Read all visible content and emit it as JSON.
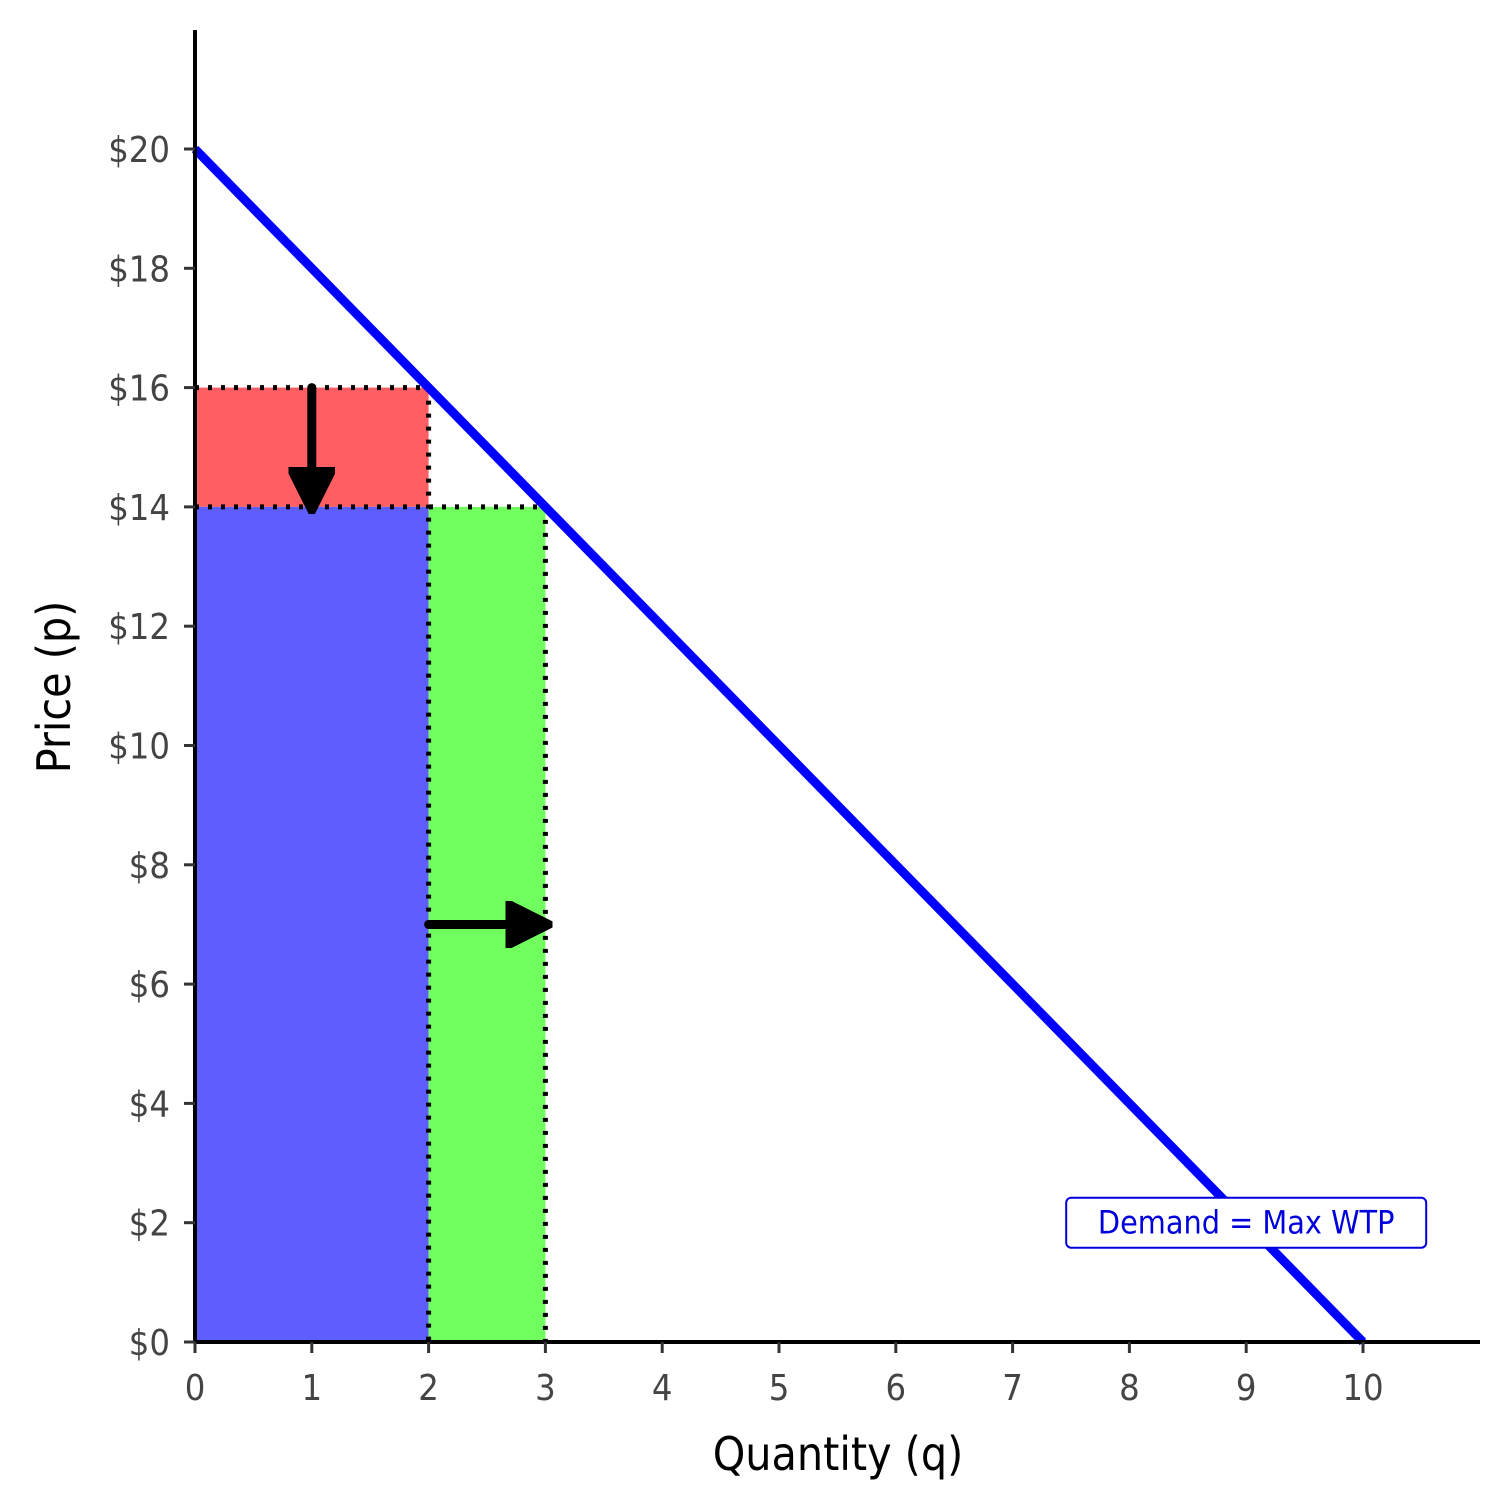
{
  "chart_data": {
    "type": "area",
    "title": "",
    "xlabel": "Quantity (q)",
    "ylabel": "Price (p)",
    "xlim": [
      0,
      11
    ],
    "ylim": [
      0,
      22
    ],
    "x_ticks": [
      "0",
      "1",
      "2",
      "3",
      "4",
      "5",
      "6",
      "7",
      "8",
      "9",
      "10"
    ],
    "y_ticks": [
      "$0",
      "$2",
      "$4",
      "$6",
      "$8",
      "$10",
      "$12",
      "$14",
      "$16",
      "$18",
      "$20"
    ],
    "grid": false,
    "legend": "none",
    "series": [
      {
        "name": "Demand = Max WTP",
        "type": "line",
        "color": "#0000ff",
        "points": [
          [
            0,
            20
          ],
          [
            10,
            0
          ]
        ]
      }
    ],
    "regions": [
      {
        "id": "price-drop-area",
        "color": "#ff5f63",
        "x": [
          0,
          2
        ],
        "y": [
          14,
          16
        ]
      },
      {
        "id": "original-quantity-area",
        "color": "#5e5eff",
        "x": [
          0,
          2
        ],
        "y": [
          0,
          14
        ]
      },
      {
        "id": "added-quantity-area",
        "color": "#70ff5e",
        "x": [
          2,
          3
        ],
        "y": [
          0,
          14
        ]
      }
    ],
    "reference_lines": [
      {
        "from": [
          0,
          16
        ],
        "to": [
          2,
          16
        ]
      },
      {
        "from": [
          2,
          16
        ],
        "to": [
          2,
          0
        ]
      },
      {
        "from": [
          0,
          14
        ],
        "to": [
          3,
          14
        ]
      },
      {
        "from": [
          3,
          14
        ],
        "to": [
          3,
          0
        ]
      }
    ],
    "arrows": [
      {
        "from": [
          1,
          16
        ],
        "to": [
          1,
          14
        ]
      },
      {
        "from": [
          2,
          7
        ],
        "to": [
          3,
          7
        ]
      }
    ],
    "annotations": [
      {
        "text": "Demand = Max WTP",
        "x": 9,
        "y": 2,
        "color": "#0000dd"
      }
    ]
  }
}
